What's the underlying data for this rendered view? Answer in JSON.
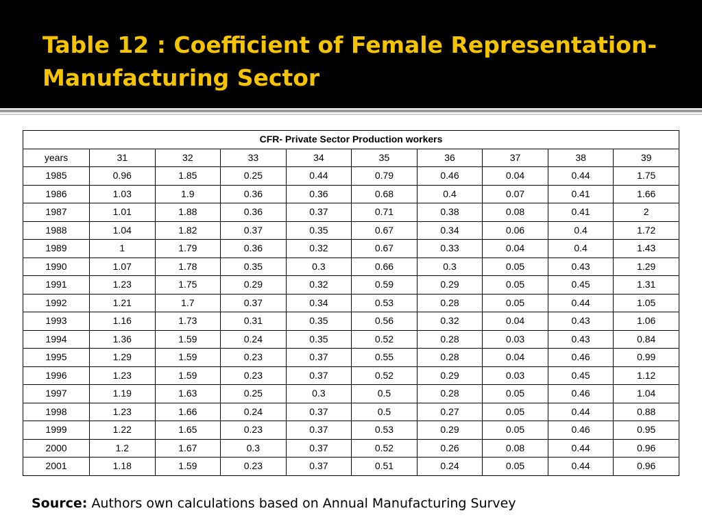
{
  "slide": {
    "title": "Table 12 : Coefficient of Female Representation-Manufacturing Sector"
  },
  "table": {
    "caption": "CFR- Private Sector Production workers",
    "header": [
      "years",
      "31",
      "32",
      "33",
      "34",
      "35",
      "36",
      "37",
      "38",
      "39"
    ],
    "rows": [
      [
        "1985",
        "0.96",
        "1.85",
        "0.25",
        "0.44",
        "0.79",
        "0.46",
        "0.04",
        "0.44",
        "1.75"
      ],
      [
        "1986",
        "1.03",
        "1.9",
        "0.36",
        "0.36",
        "0.68",
        "0.4",
        "0.07",
        "0.41",
        "1.66"
      ],
      [
        "1987",
        "1.01",
        "1.88",
        "0.36",
        "0.37",
        "0.71",
        "0.38",
        "0.08",
        "0.41",
        "2"
      ],
      [
        "1988",
        "1.04",
        "1.82",
        "0.37",
        "0.35",
        "0.67",
        "0.34",
        "0.06",
        "0.4",
        "1.72"
      ],
      [
        "1989",
        "1",
        "1.79",
        "0.36",
        "0.32",
        "0.67",
        "0.33",
        "0.04",
        "0.4",
        "1.43"
      ],
      [
        "1990",
        "1.07",
        "1.78",
        "0.35",
        "0.3",
        "0.66",
        "0.3",
        "0.05",
        "0.43",
        "1.29"
      ],
      [
        "1991",
        "1.23",
        "1.75",
        "0.29",
        "0.32",
        "0.59",
        "0.29",
        "0.05",
        "0.45",
        "1.31"
      ],
      [
        "1992",
        "1.21",
        "1.7",
        "0.37",
        "0.34",
        "0.53",
        "0.28",
        "0.05",
        "0.44",
        "1.05"
      ],
      [
        "1993",
        "1.16",
        "1.73",
        "0.31",
        "0.35",
        "0.56",
        "0.32",
        "0.04",
        "0.43",
        "1.06"
      ],
      [
        "1994",
        "1.36",
        "1.59",
        "0.24",
        "0.35",
        "0.52",
        "0.28",
        "0.03",
        "0.43",
        "0.84"
      ],
      [
        "1995",
        "1.29",
        "1.59",
        "0.23",
        "0.37",
        "0.55",
        "0.28",
        "0.04",
        "0.46",
        "0.99"
      ],
      [
        "1996",
        "1.23",
        "1.59",
        "0.23",
        "0.37",
        "0.52",
        "0.29",
        "0.03",
        "0.45",
        "1.12"
      ],
      [
        "1997",
        "1.19",
        "1.63",
        "0.25",
        "0.3",
        "0.5",
        "0.28",
        "0.05",
        "0.46",
        "1.04"
      ],
      [
        "1998",
        "1.23",
        "1.66",
        "0.24",
        "0.37",
        "0.5",
        "0.27",
        "0.05",
        "0.44",
        "0.88"
      ],
      [
        "1999",
        "1.22",
        "1.65",
        "0.23",
        "0.37",
        "0.53",
        "0.29",
        "0.05",
        "0.46",
        "0.95"
      ],
      [
        "2000",
        "1.2",
        "1.67",
        "0.3",
        "0.37",
        "0.52",
        "0.26",
        "0.08",
        "0.44",
        "0.96"
      ],
      [
        "2001",
        "1.18",
        "1.59",
        "0.23",
        "0.37",
        "0.51",
        "0.24",
        "0.05",
        "0.44",
        "0.96"
      ]
    ]
  },
  "source": {
    "label": "Source:",
    "text": "Authors own calculations based on Annual Manufacturing Survey"
  },
  "colors": {
    "title_band": "#000000",
    "title_text": "#f5c400",
    "background": "#ffffff"
  }
}
